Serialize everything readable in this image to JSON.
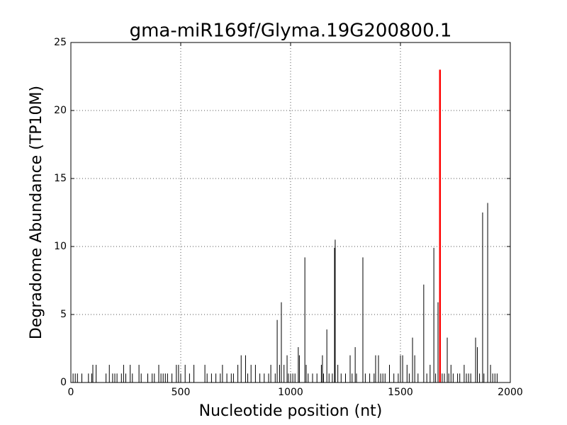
{
  "chart_data": {
    "type": "spike",
    "title": "gma-miR169f/Glyma.19G200800.1",
    "x_label": "Nucleotide position (nt)",
    "y_label": "Degradome Abundance (TP10M)",
    "xlim": [
      0,
      2000
    ],
    "xticks": [
      0,
      500,
      1000,
      1500,
      2000
    ],
    "ylim": [
      0,
      25
    ],
    "yticks": [
      0,
      5,
      10,
      15,
      20,
      25
    ],
    "grid": true,
    "series": [
      {
        "color": "#000000",
        "x": [
          10,
          20,
          30,
          50,
          80,
          95,
          100,
          115,
          160,
          175,
          190,
          200,
          210,
          230,
          240,
          250,
          270,
          280,
          310,
          320,
          350,
          370,
          380,
          400,
          410,
          420,
          430,
          440,
          460,
          480,
          490,
          500,
          520,
          540,
          560,
          610,
          620,
          640,
          660,
          680,
          690,
          710,
          730,
          740,
          760,
          775,
          795,
          805,
          820,
          840,
          860,
          880,
          900,
          910,
          930,
          939,
          950,
          958,
          970,
          984,
          990,
          1000,
          1010,
          1020,
          1035,
          1040,
          1065,
          1071,
          1080,
          1100,
          1120,
          1140,
          1145,
          1150,
          1165,
          1175,
          1190,
          1200,
          1203,
          1215,
          1230,
          1250,
          1271,
          1280,
          1294,
          1300,
          1329,
          1340,
          1360,
          1380,
          1387,
          1400,
          1410,
          1420,
          1430,
          1450,
          1470,
          1490,
          1500,
          1510,
          1530,
          1540,
          1555,
          1565,
          1580,
          1606,
          1620,
          1635,
          1652,
          1660,
          1671,
          1690,
          1700,
          1713,
          1720,
          1730,
          1740,
          1760,
          1770,
          1790,
          1800,
          1810,
          1820,
          1842,
          1850,
          1860,
          1874,
          1880,
          1897,
          1910,
          1920,
          1930,
          1940
        ],
        "values": [
          0.66,
          0.66,
          0.66,
          0.66,
          0.66,
          0.66,
          1.3,
          1.3,
          0.66,
          1.3,
          0.66,
          0.66,
          0.66,
          0.66,
          1.3,
          0.66,
          1.3,
          0.66,
          1.3,
          0.66,
          0.66,
          0.66,
          0.66,
          1.3,
          0.66,
          0.66,
          0.66,
          0.66,
          0.66,
          1.3,
          1.3,
          0.66,
          1.3,
          0.66,
          1.3,
          1.3,
          0.66,
          0.66,
          0.66,
          0.66,
          1.3,
          0.66,
          0.66,
          0.66,
          1.3,
          2.0,
          2.0,
          0.66,
          1.3,
          1.3,
          0.66,
          0.66,
          0.66,
          1.3,
          0.66,
          4.6,
          1.3,
          5.9,
          1.3,
          2.0,
          0.66,
          0.66,
          0.66,
          0.66,
          2.6,
          2.0,
          9.2,
          1.3,
          0.66,
          0.66,
          0.66,
          1.3,
          2.0,
          0.66,
          3.9,
          0.66,
          0.66,
          9.9,
          10.5,
          1.3,
          0.66,
          0.66,
          2.0,
          0.66,
          2.6,
          0.66,
          9.2,
          0.66,
          0.66,
          0.66,
          2.0,
          2.0,
          0.66,
          0.66,
          0.66,
          1.3,
          0.66,
          0.66,
          2.0,
          2.0,
          1.3,
          0.66,
          3.3,
          2.0,
          0.66,
          7.2,
          0.66,
          1.3,
          9.9,
          0.66,
          5.9,
          0.66,
          0.66,
          3.3,
          0.66,
          1.3,
          0.66,
          0.66,
          0.66,
          1.3,
          0.66,
          0.66,
          0.66,
          3.3,
          2.6,
          0.66,
          12.5,
          0.66,
          13.2,
          1.3,
          0.66,
          0.66,
          0.66
        ]
      },
      {
        "color": "#ff0000",
        "x": [
          1680
        ],
        "values": [
          23.0
        ]
      }
    ]
  }
}
